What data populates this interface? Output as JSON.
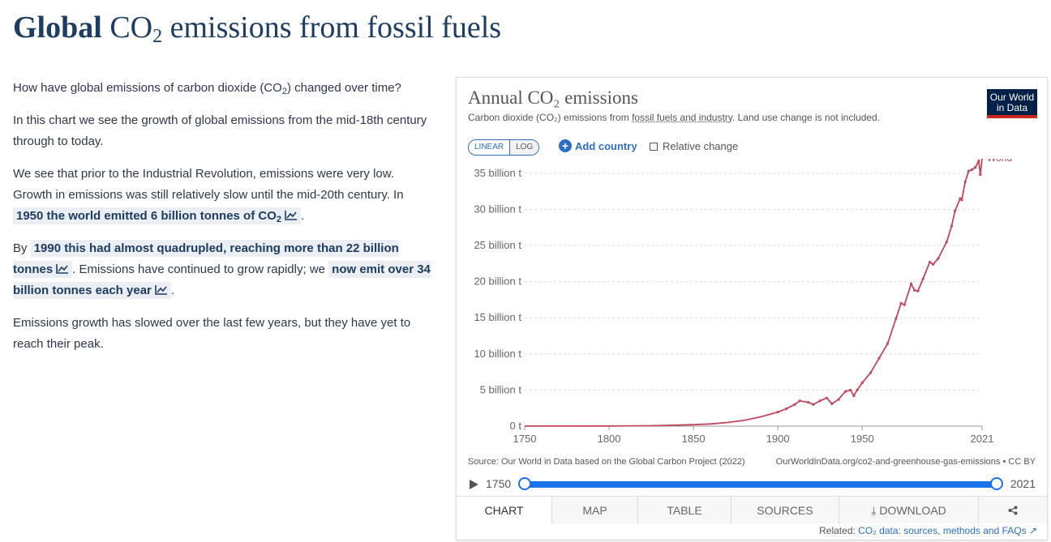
{
  "page": {
    "title_bold": "Global",
    "title_rest_a": "CO",
    "title_sub": "2",
    "title_rest_b": "emissions from fossil fuels"
  },
  "article": {
    "p1_a": "How have global emissions of carbon dioxide (CO",
    "p1_sub": "2",
    "p1_b": ") changed over time?",
    "p2": "In this chart we see the growth of global emissions from the mid-18th century through to today.",
    "p3_a": "We see that prior to the Industrial Revolution, emissions were very low. Growth in emissions was still relatively slow until the mid-20th century. In",
    "p3_ref": "1950 the world emitted 6 billion tonnes of CO",
    "p3_ref_sub": "2",
    "p3_b": ".",
    "p4_a": "By",
    "p4_ref1": "1990 this had almost quadrupled, reaching more than 22 billion tonnes",
    "p4_b": ". Emissions have continued to grow rapidly; we",
    "p4_ref2": "now emit over 34 billion tonnes each year",
    "p4_c": ".",
    "p5": "Emissions growth has slowed over the last few years, but they have yet to reach their peak."
  },
  "chart_card": {
    "title": "Annual CO₂ emissions",
    "subtitle_a": "Carbon dioxide (CO₂) emissions from",
    "subtitle_link": "fossil fuels and industry",
    "subtitle_b": ". Land use change is not included.",
    "logo_line1": "Our World",
    "logo_line2": "in Data",
    "linear_label": "LINEAR",
    "log_label": "LOG",
    "add_country": "Add country",
    "relative_change": "Relative change",
    "source_left": "Source: Our World in Data based on the Global Carbon Project (2022)",
    "source_right": "OurWorldInData.org/co2-and-greenhouse-gas-emissions • CC BY",
    "timeline_start": "1750",
    "timeline_end": "2021",
    "tabs": [
      "CHART",
      "MAP",
      "TABLE",
      "SOURCES",
      "DOWNLOAD",
      "share"
    ],
    "related_label": "Related:",
    "related_link": "CO₂ data: sources, methods and FAQs"
  },
  "colors": {
    "series": "#c0475c",
    "accent": "#1a73e8",
    "title": "#1d3d63"
  },
  "chart_data": {
    "type": "line",
    "title": "Annual CO₂ emissions",
    "xlabel": "",
    "ylabel": "",
    "xlim": [
      1750,
      2021
    ],
    "ylim": [
      0,
      37000000000
    ],
    "x_ticks": [
      1750,
      1800,
      1850,
      1900,
      1950,
      2021
    ],
    "y_ticks": [
      {
        "value": 0,
        "label": "0 t"
      },
      {
        "value": 5000000000,
        "label": "5 billion t"
      },
      {
        "value": 10000000000,
        "label": "10 billion t"
      },
      {
        "value": 15000000000,
        "label": "15 billion t"
      },
      {
        "value": 20000000000,
        "label": "20 billion t"
      },
      {
        "value": 25000000000,
        "label": "25 billion t"
      },
      {
        "value": 30000000000,
        "label": "30 billion t"
      },
      {
        "value": 35000000000,
        "label": "35 billion t"
      }
    ],
    "series": [
      {
        "name": "World",
        "x": [
          1750,
          1775,
          1800,
          1825,
          1850,
          1860,
          1870,
          1880,
          1890,
          1900,
          1905,
          1910,
          1913,
          1918,
          1921,
          1925,
          1929,
          1932,
          1936,
          1940,
          1943,
          1945,
          1947,
          1950,
          1955,
          1960,
          1965,
          1970,
          1973,
          1975,
          1979,
          1981,
          1983,
          1986,
          1990,
          1992,
          1995,
          2000,
          2003,
          2005,
          2008,
          2009,
          2011,
          2013,
          2015,
          2017,
          2019,
          2020,
          2021
        ],
        "values": [
          9000000,
          15000000,
          28000000,
          58000000,
          197000000,
          300000000,
          500000000,
          800000000,
          1300000000,
          1950000000,
          2400000000,
          3000000000,
          3500000000,
          3300000000,
          3000000000,
          3500000000,
          3900000000,
          3100000000,
          3700000000,
          4800000000,
          5000000000,
          4200000000,
          5000000000,
          6000000000,
          7400000000,
          9400000000,
          11400000000,
          14900000000,
          17000000000,
          16800000000,
          19700000000,
          18800000000,
          18700000000,
          20400000000,
          22700000000,
          22400000000,
          23200000000,
          25500000000,
          27700000000,
          29800000000,
          31500000000,
          31300000000,
          33800000000,
          35300000000,
          35500000000,
          35800000000,
          36700000000,
          34800000000,
          37100000000
        ]
      }
    ]
  }
}
